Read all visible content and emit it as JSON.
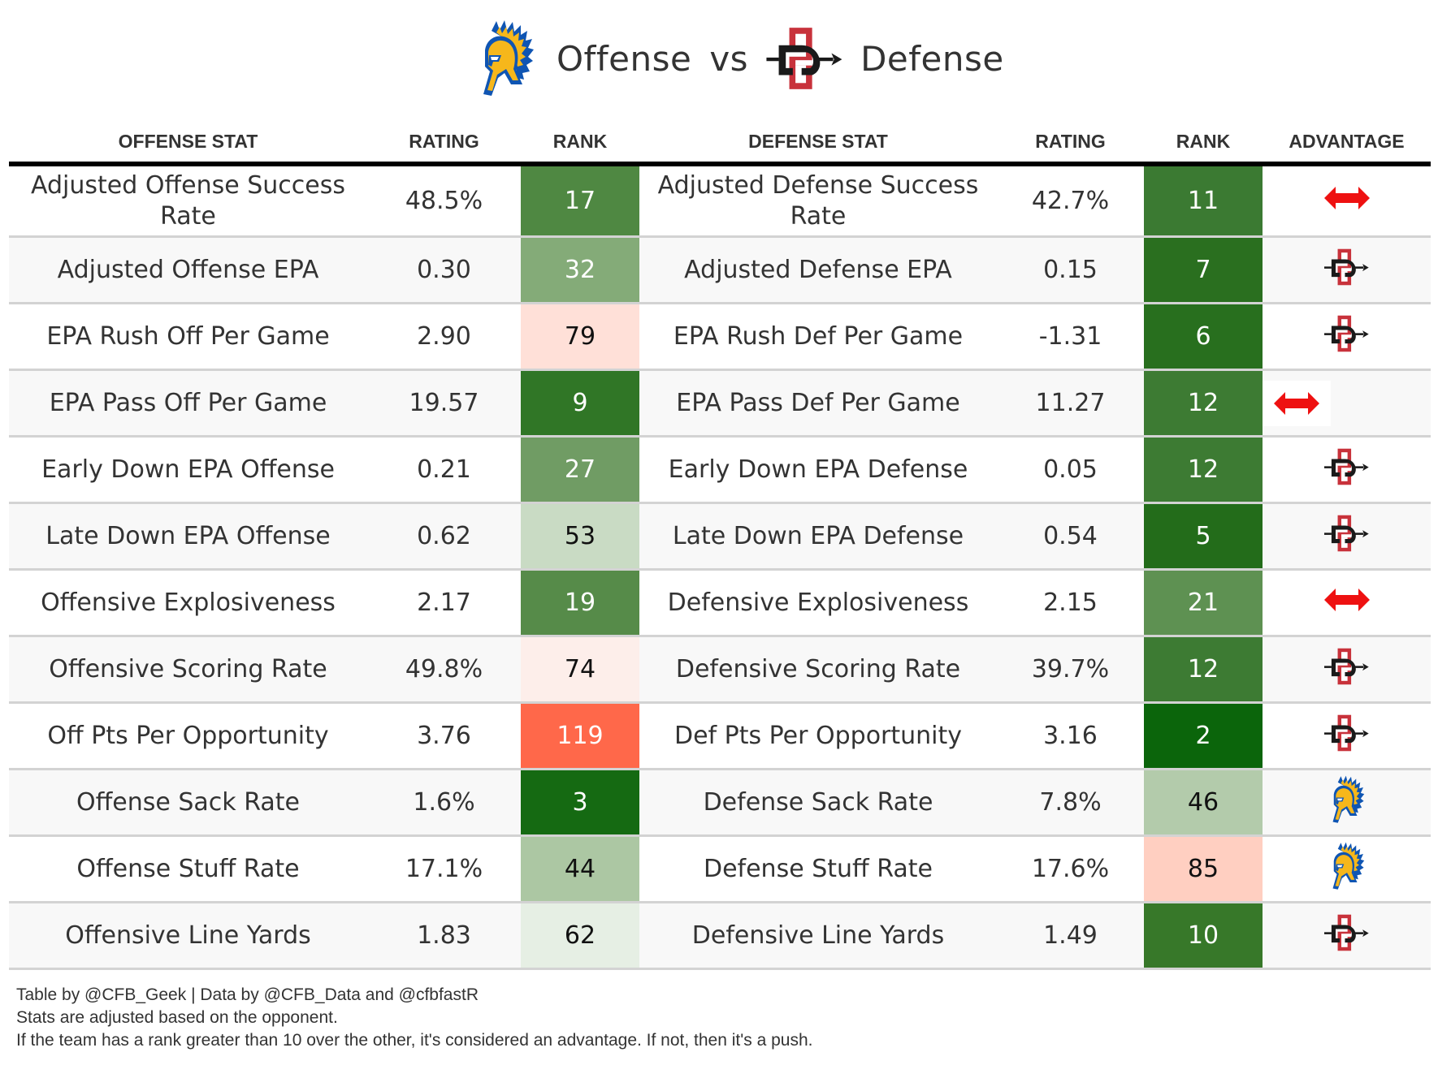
{
  "title": {
    "offense_team_logo": "sjsu-spartan-logo",
    "offense_word": "Offense",
    "vs_word": "vs",
    "defense_team_logo": "sdsu-aztecs-logo",
    "defense_word": "Defense"
  },
  "columns": {
    "offense_stat": "OFFENSE STAT",
    "offense_rating": "RATING",
    "offense_rank": "RANK",
    "defense_stat": "DEFENSE STAT",
    "defense_rating": "RATING",
    "defense_rank": "RANK",
    "advantage": "ADVANTAGE"
  },
  "colors": {
    "rank_best": "#0b650b",
    "rank_mid_green": "#80ab76",
    "rank_light_green": "#e6efe4",
    "rank_light_red": "#fdeeea",
    "rank_mid_red": "#ffddd3",
    "rank_worst": "#ff684a",
    "push_arrow": "#ee1111",
    "sdsu_red": "#c8323b",
    "sjsu_gold": "#f6b71b",
    "sjsu_blue": "#0f55b3"
  },
  "rows": [
    {
      "off_stat": "Adjusted Offense Success Rate",
      "off_rating": "48.5%",
      "off_rank": "17",
      "off_rank_color": "#4f8842",
      "off_rank_text": "light",
      "def_stat": "Adjusted Defense Success Rate",
      "def_rating": "42.7%",
      "def_rank": "11",
      "def_rank_color": "#3b7a32",
      "def_rank_text": "light",
      "advantage": "push"
    },
    {
      "off_stat": "Adjusted Offense EPA",
      "off_rating": "0.30",
      "off_rank": "32",
      "off_rank_color": "#84ab78",
      "off_rank_text": "light",
      "def_stat": "Adjusted Defense EPA",
      "def_rating": "0.15",
      "def_rank": "7",
      "def_rank_color": "#2a6f1f",
      "def_rank_text": "light",
      "advantage": "sdsu"
    },
    {
      "off_stat": "EPA Rush Off Per Game",
      "off_rating": "2.90",
      "off_rank": "79",
      "off_rank_color": "#ffe0d8",
      "off_rank_text": "dark",
      "def_stat": "EPA Rush Def Per Game",
      "def_rating": "-1.31",
      "def_rank": "6",
      "def_rank_color": "#286f1e",
      "def_rank_text": "light",
      "advantage": "sdsu"
    },
    {
      "off_stat": "EPA Pass Off Per Game",
      "off_rating": "19.57",
      "off_rank": "9",
      "off_rank_color": "#307626",
      "off_rank_text": "light",
      "def_stat": "EPA Pass Def Per Game",
      "def_rating": "11.27",
      "def_rank": "12",
      "def_rank_color": "#3d7b33",
      "def_rank_text": "light",
      "advantage": "push"
    },
    {
      "off_stat": "Early Down EPA Offense",
      "off_rating": "0.21",
      "off_rank": "27",
      "off_rank_color": "#709c64",
      "off_rank_text": "light",
      "def_stat": "Early Down EPA Defense",
      "def_rating": "0.05",
      "def_rank": "12",
      "def_rank_color": "#3d7b33",
      "def_rank_text": "light",
      "advantage": "sdsu"
    },
    {
      "off_stat": "Late Down EPA Offense",
      "off_rating": "0.62",
      "off_rank": "53",
      "off_rank_color": "#c9dbc4",
      "off_rank_text": "dark",
      "def_stat": "Late Down EPA Defense",
      "def_rating": "0.54",
      "def_rank": "5",
      "def_rank_color": "#236c1a",
      "def_rank_text": "light",
      "advantage": "sdsu"
    },
    {
      "off_stat": "Offensive Explosiveness",
      "off_rating": "2.17",
      "off_rank": "19",
      "off_rank_color": "#568b49",
      "off_rank_text": "light",
      "def_stat": "Defensive Explosiveness",
      "def_rating": "2.15",
      "def_rank": "21",
      "def_rank_color": "#5e9152",
      "def_rank_text": "light",
      "advantage": "push"
    },
    {
      "off_stat": "Offensive Scoring Rate",
      "off_rating": "49.8%",
      "off_rank": "74",
      "off_rank_color": "#fdeeea",
      "off_rank_text": "dark",
      "def_stat": "Defensive Scoring Rate",
      "def_rating": "39.7%",
      "def_rank": "12",
      "def_rank_color": "#3d7b33",
      "def_rank_text": "light",
      "advantage": "sdsu"
    },
    {
      "off_stat": "Off Pts Per Opportunity",
      "off_rating": "3.76",
      "off_rank": "119",
      "off_rank_color": "#ff684a",
      "off_rank_text": "light",
      "def_stat": "Def Pts Per Opportunity",
      "def_rating": "3.16",
      "def_rank": "2",
      "def_rank_color": "#0b650b",
      "def_rank_text": "light",
      "advantage": "sdsu"
    },
    {
      "off_stat": "Offense Sack Rate",
      "off_rating": "1.6%",
      "off_rank": "3",
      "off_rank_color": "#156a12",
      "off_rank_text": "light",
      "def_stat": "Defense Sack Rate",
      "def_rating": "7.8%",
      "def_rank": "46",
      "def_rank_color": "#b3cbab",
      "def_rank_text": "dark",
      "advantage": "sjsu"
    },
    {
      "off_stat": "Offense Stuff Rate",
      "off_rating": "17.1%",
      "off_rank": "44",
      "off_rank_color": "#acc7a3",
      "off_rank_text": "dark",
      "def_stat": "Defense Stuff Rate",
      "def_rating": "17.6%",
      "def_rank": "85",
      "def_rank_color": "#ffcfc1",
      "def_rank_text": "dark",
      "advantage": "sjsu"
    },
    {
      "off_stat": "Offensive Line Yards",
      "off_rating": "1.83",
      "off_rank": "62",
      "off_rank_color": "#e6efe4",
      "off_rank_text": "dark",
      "def_stat": "Defensive Line Yards",
      "def_rating": "1.49",
      "def_rank": "10",
      "def_rank_color": "#377829",
      "def_rank_text": "light",
      "advantage": "sdsu"
    }
  ],
  "footer": {
    "line1": "Table by @CFB_Geek | Data by @CFB_Data and @cfbfastR",
    "line2": "Stats are adjusted based on the opponent.",
    "line3": "If the team has a rank greater than 10 over the other, it's considered an advantage. If not, then it's a push."
  }
}
